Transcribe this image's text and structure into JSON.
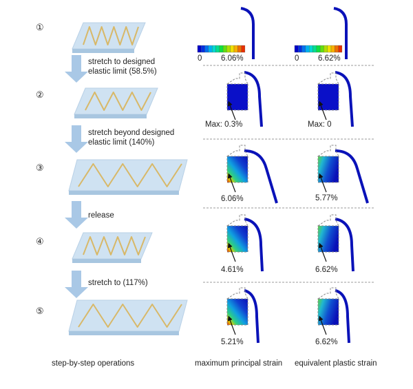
{
  "steps": [
    {
      "number": "①"
    },
    {
      "number": "②"
    },
    {
      "number": "③"
    },
    {
      "number": "④"
    },
    {
      "number": "⑤"
    }
  ],
  "transitions": [
    {
      "line1": "stretch to designed",
      "line2": "elastic limit (58.5%)"
    },
    {
      "line1": "stretch beyond designed",
      "line2": "elastic limit (140%)"
    },
    {
      "line1": "release",
      "line2": ""
    },
    {
      "line1": "stretch to (117%)",
      "line2": ""
    }
  ],
  "colorbars": [
    {
      "min": "0",
      "max": "6.06%"
    },
    {
      "min": "0",
      "max": "6.62%"
    }
  ],
  "colorbar_colors": [
    "#0000c8",
    "#0030e0",
    "#0070f0",
    "#00b0f0",
    "#00d8d0",
    "#00e090",
    "#10e040",
    "#60e010",
    "#b0e000",
    "#f0e000",
    "#f8b000",
    "#f07000",
    "#e83000"
  ],
  "results": [
    {
      "principal": "Max: 0.3%",
      "plastic": "Max: 0"
    },
    {
      "principal": "6.06%",
      "plastic": "5.77%"
    },
    {
      "principal": "4.61%",
      "plastic": "6.62%"
    },
    {
      "principal": "5.21%",
      "plastic": "6.62%"
    }
  ],
  "captions": {
    "left": "step-by-step operations",
    "middle": "maximum principal strain",
    "right": "equivalent plastic strain"
  },
  "colors": {
    "wire": "#0a12b8",
    "arrow": "#a9c8e6",
    "substrate": "#cfe2f2",
    "trace": "#d8b868"
  }
}
